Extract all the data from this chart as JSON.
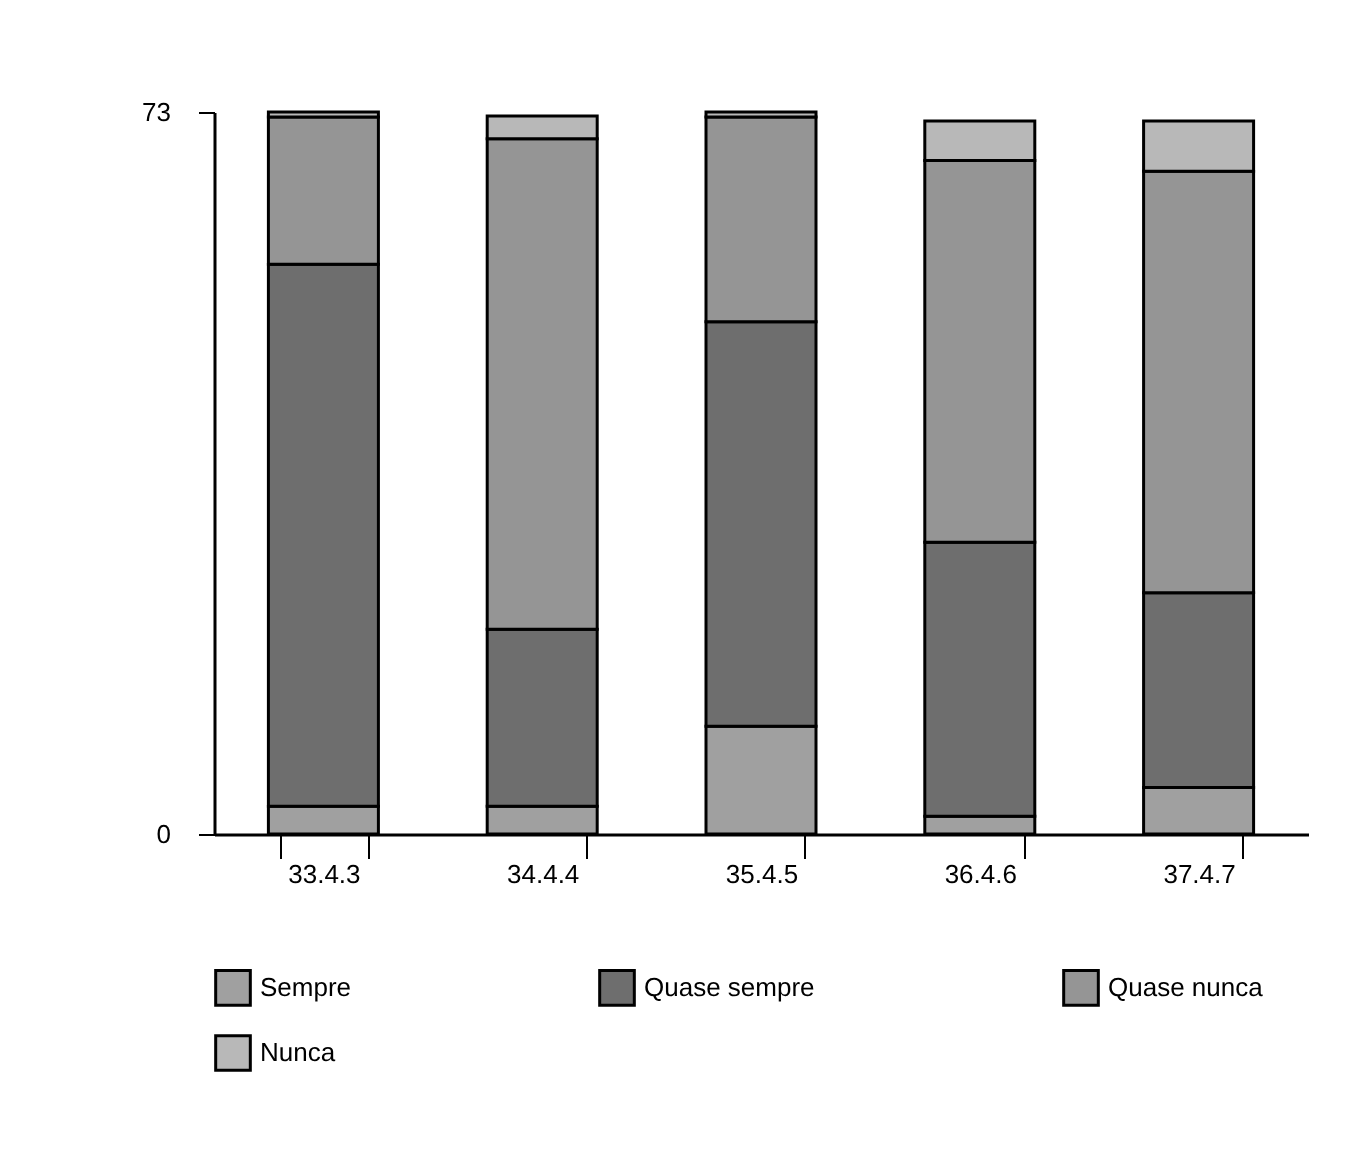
{
  "chart_data": {
    "type": "bar",
    "stacked": true,
    "categories": [
      "33.4.3",
      "34.4.4",
      "35.4.5",
      "36.4.6",
      "37.4.7"
    ],
    "series": [
      {
        "name": "Sempre",
        "color": "#a0a0a0",
        "values": [
          2.8,
          2.8,
          10.9,
          1.8,
          4.7
        ]
      },
      {
        "name": "Quase sempre",
        "color": "#6e6e6e",
        "values": [
          54.8,
          17.9,
          40.9,
          27.7,
          19.7
        ]
      },
      {
        "name": "Quase nunca",
        "color": "#959595",
        "values": [
          14.9,
          49.6,
          20.7,
          38.6,
          42.6
        ]
      },
      {
        "name": "Nunca",
        "color": "#b8b8b8",
        "values": [
          0.5,
          2.3,
          0.5,
          4.0,
          5.1
        ]
      }
    ],
    "ylim": [
      0,
      73
    ],
    "yticks": [
      0,
      73
    ],
    "grid": false,
    "legend": "bottom"
  }
}
